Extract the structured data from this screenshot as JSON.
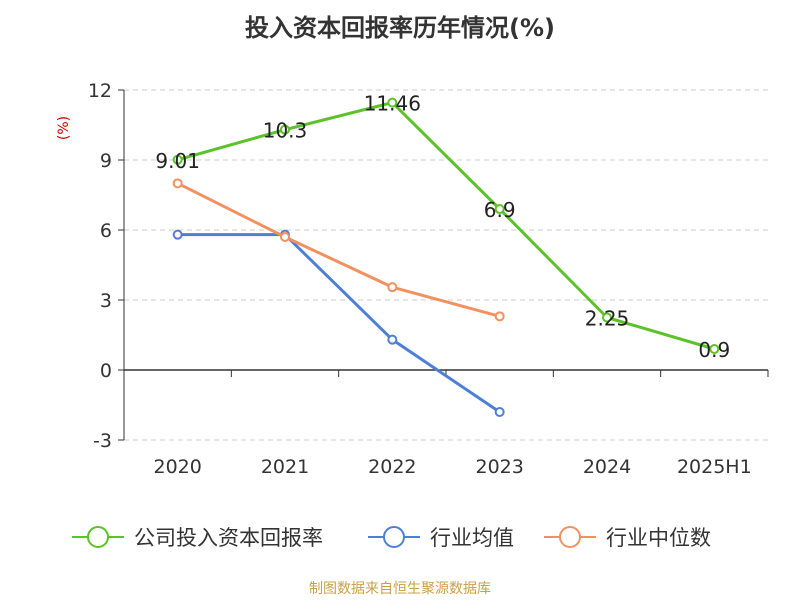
{
  "chart_data": {
    "type": "line",
    "title": "投入资本回报率历年情况(%)",
    "ylabel": "(%)",
    "xlabel": "",
    "categories": [
      "2020",
      "2021",
      "2022",
      "2023",
      "2024",
      "2025H1"
    ],
    "ylim": [
      -3,
      12
    ],
    "yticks": [
      -3,
      0,
      3,
      6,
      9,
      12
    ],
    "grid": true,
    "legend_position": "bottom",
    "series": [
      {
        "name": "公司投入资本回报率",
        "color": "#5cc22a",
        "values": [
          9.01,
          10.3,
          11.46,
          6.9,
          2.25,
          0.9
        ],
        "labels": [
          "9.01",
          "10.3",
          "11.46",
          "6.9",
          "2.25",
          "0.9"
        ]
      },
      {
        "name": "行业均值",
        "color": "#4e7fd8",
        "values": [
          5.8,
          5.8,
          1.3,
          -1.8,
          null,
          null
        ]
      },
      {
        "name": "行业中位数",
        "color": "#f39060",
        "values": [
          8.0,
          5.7,
          3.55,
          2.3,
          null,
          null
        ]
      }
    ]
  },
  "source": "制图数据来自恒生聚源数据库"
}
